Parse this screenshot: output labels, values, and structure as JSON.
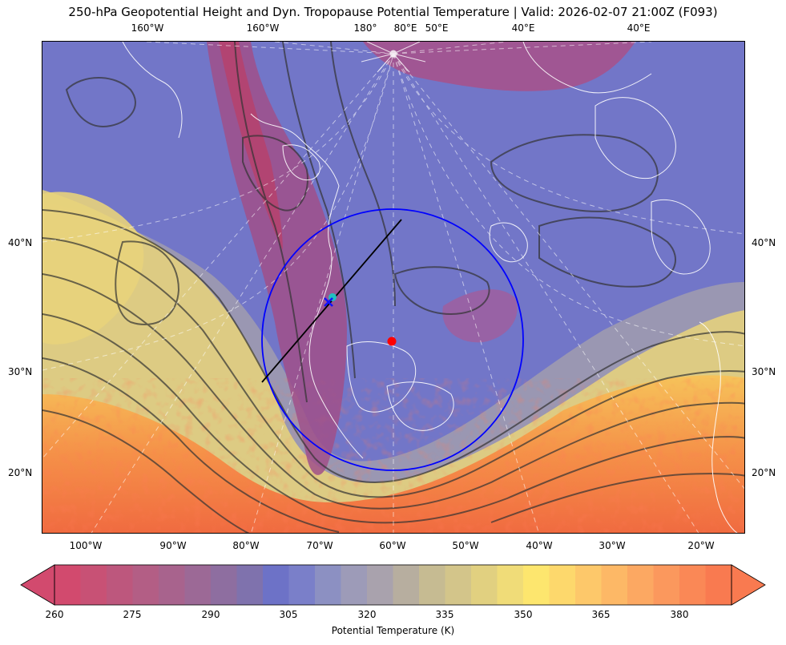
{
  "title": "250-hPa Geopotential Height and Dyn. Tropopause Potential Temperature   |  Valid: 2026-02-07 21:00Z (F093)",
  "map": {
    "top_longitude_labels": [
      "160°W",
      "160°W",
      "180°",
      "80°E",
      "50°E",
      "40°E",
      "40°E"
    ],
    "bottom_longitude_labels": [
      "100°W",
      "90°W",
      "80°W",
      "70°W",
      "60°W",
      "50°W",
      "40°W",
      "30°W",
      "20°W"
    ],
    "left_latitude_labels": [
      "40°N",
      "30°N",
      "20°N"
    ],
    "right_latitude_labels": [
      "40°N",
      "30°N",
      "20°N"
    ],
    "markers": [
      {
        "name": "red-point",
        "color": "#ff0000"
      },
      {
        "name": "cyan-point",
        "color": "#20c0c0"
      },
      {
        "name": "blue-x",
        "color": "#1010ff"
      }
    ],
    "overlay_colors": {
      "circle": "#0000ff",
      "cross_section_line": "#000000",
      "height_contours": "#333333",
      "coastlines": "#ffffff"
    }
  },
  "colorbar": {
    "label": "Potential Temperature (K)",
    "ticks": [
      "260",
      "275",
      "290",
      "305",
      "320",
      "335",
      "350",
      "365",
      "380"
    ],
    "colors": [
      "#d24a6e",
      "#c85175",
      "#bd577d",
      "#b35e85",
      "#a8638d",
      "#9c6996",
      "#8e6ea0",
      "#7f72ad",
      "#6d72c7",
      "#7a7fc9",
      "#8c90c2",
      "#9d9bb8",
      "#a9a2ad",
      "#b7ae9f",
      "#c6bb92",
      "#d3c58a",
      "#e1d080",
      "#f0dc78",
      "#fde66e",
      "#fdd86c",
      "#fdc86a",
      "#fdb866",
      "#fca862",
      "#fb985d",
      "#fa8856",
      "#f97a50"
    ]
  }
}
